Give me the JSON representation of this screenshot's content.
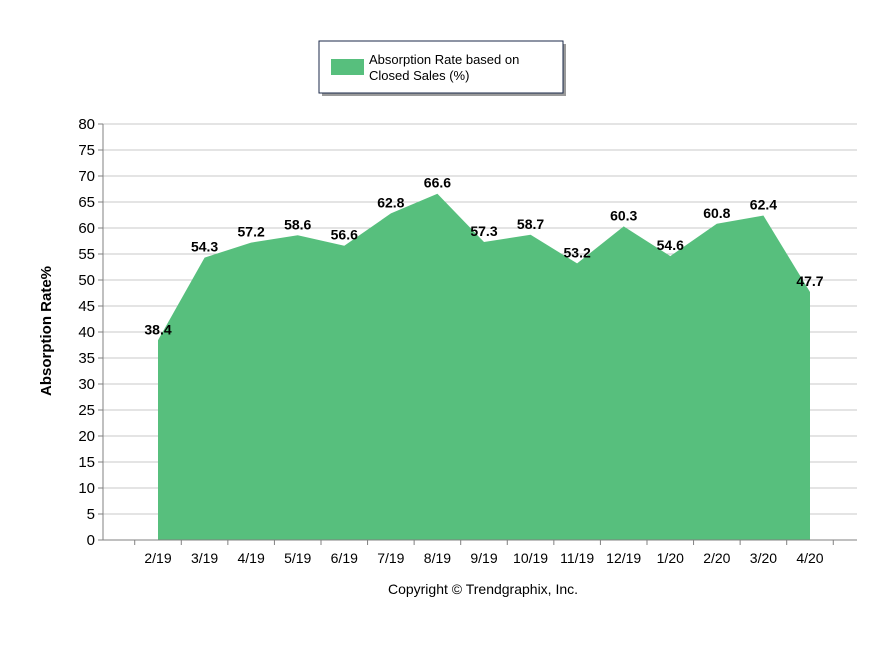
{
  "chart_data": {
    "type": "area",
    "legend": {
      "placement": "top-center",
      "line1": "Absorption Rate based on",
      "line2": "Closed Sales (%)"
    },
    "ylabel": "Absorption Rate%",
    "xlabel": "",
    "ylim": [
      0,
      80
    ],
    "ytick_step": 5,
    "grid": true,
    "fill_color": "#57bf7d",
    "categories": [
      "2/19",
      "3/19",
      "4/19",
      "5/19",
      "6/19",
      "7/19",
      "8/19",
      "9/19",
      "10/19",
      "11/19",
      "12/19",
      "1/20",
      "2/20",
      "3/20",
      "4/20"
    ],
    "series": [
      {
        "name": "Absorption Rate based on Closed Sales (%)",
        "values": [
          38.4,
          54.3,
          57.2,
          58.6,
          56.6,
          62.8,
          66.6,
          57.3,
          58.7,
          53.2,
          60.3,
          54.6,
          60.8,
          62.4,
          47.7
        ]
      }
    ],
    "data_labels": [
      "38.4",
      "54.3",
      "57.2",
      "58.6",
      "56.6",
      "62.8",
      "66.6",
      "57.3",
      "58.7",
      "53.2",
      "60.3",
      "54.6",
      "60.8",
      "62.4",
      "47.7"
    ]
  },
  "footer": {
    "copyright": "Copyright © Trendgraphix, Inc."
  }
}
